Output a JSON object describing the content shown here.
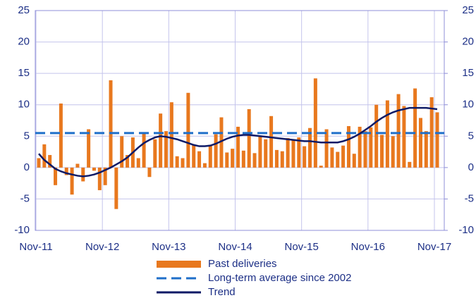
{
  "chart_data": {
    "type": "bar_line",
    "categories": [
      "Nov-11",
      null,
      null,
      null,
      null,
      null,
      null,
      null,
      null,
      null,
      null,
      null,
      "Nov-12",
      null,
      null,
      null,
      null,
      null,
      null,
      null,
      null,
      null,
      null,
      null,
      "Nov-13",
      null,
      null,
      null,
      null,
      null,
      null,
      null,
      null,
      null,
      null,
      null,
      "Nov-14",
      null,
      null,
      null,
      null,
      null,
      null,
      null,
      null,
      null,
      null,
      null,
      "Nov-15",
      null,
      null,
      null,
      null,
      null,
      null,
      null,
      null,
      null,
      null,
      null,
      "Nov-16",
      null,
      null,
      null,
      null,
      null,
      null,
      null,
      null,
      null,
      null,
      null,
      "Nov-17"
    ],
    "series": [
      {
        "name": "Past deliveries",
        "type": "bar",
        "color": "#e8781e",
        "values": [
          1.5,
          3.7,
          2.0,
          -2.8,
          10.2,
          -1.2,
          -4.3,
          0.6,
          -2.2,
          6.1,
          -0.5,
          -3.6,
          -2.8,
          13.9,
          -6.6,
          5.0,
          2.0,
          4.8,
          1.5,
          5.4,
          -1.5,
          4.5,
          8.6,
          5.8,
          10.4,
          1.8,
          1.5,
          11.9,
          3.6,
          2.6,
          0.7,
          3.6,
          5.3,
          8.0,
          2.4,
          3.0,
          6.5,
          2.7,
          9.3,
          2.3,
          5.0,
          4.5,
          8.2,
          2.8,
          2.6,
          4.7,
          4.5,
          4.8,
          3.4,
          6.3,
          14.2,
          0.3,
          6.1,
          3.2,
          2.5,
          3.5,
          6.6,
          2.2,
          6.5,
          5.8,
          6.4,
          10.0,
          5.2,
          10.7,
          5.0,
          11.7,
          9.8,
          0.9,
          12.6,
          7.9,
          5.8,
          11.2,
          8.8
        ]
      },
      {
        "name": "Long-term average since 2002",
        "type": "hline",
        "color": "#1f6fc9",
        "dashed": true,
        "value": 5.5
      },
      {
        "name": "Trend",
        "type": "line",
        "color": "#0d1a66",
        "values": [
          2.2,
          1.2,
          0.5,
          -0.2,
          -0.6,
          -0.9,
          -1.1,
          -1.3,
          -1.4,
          -1.3,
          -1.1,
          -0.8,
          -0.4,
          0.0,
          0.5,
          1.0,
          1.6,
          2.4,
          3.2,
          3.9,
          4.4,
          4.8,
          5.0,
          4.9,
          4.7,
          4.5,
          4.2,
          3.9,
          3.6,
          3.4,
          3.4,
          3.5,
          3.8,
          4.2,
          4.6,
          4.9,
          5.1,
          5.2,
          5.2,
          5.1,
          5.0,
          4.9,
          4.8,
          4.7,
          4.6,
          4.5,
          4.4,
          4.3,
          4.2,
          4.2,
          4.1,
          4.0,
          4.0,
          4.0,
          4.0,
          4.2,
          4.5,
          4.9,
          5.4,
          6.0,
          6.6,
          7.3,
          7.9,
          8.4,
          8.8,
          9.1,
          9.3,
          9.5,
          9.5,
          9.5,
          9.5,
          9.4,
          9.3
        ]
      }
    ],
    "ylim": [
      -10,
      25
    ],
    "yticks": [
      -10,
      -5,
      0,
      5,
      10,
      15,
      20,
      25
    ],
    "y2lim": [
      -10,
      25
    ],
    "y2ticks": [
      -10,
      -5,
      0,
      5,
      10,
      15,
      20,
      25
    ],
    "grid": true,
    "legend": "bottom"
  }
}
